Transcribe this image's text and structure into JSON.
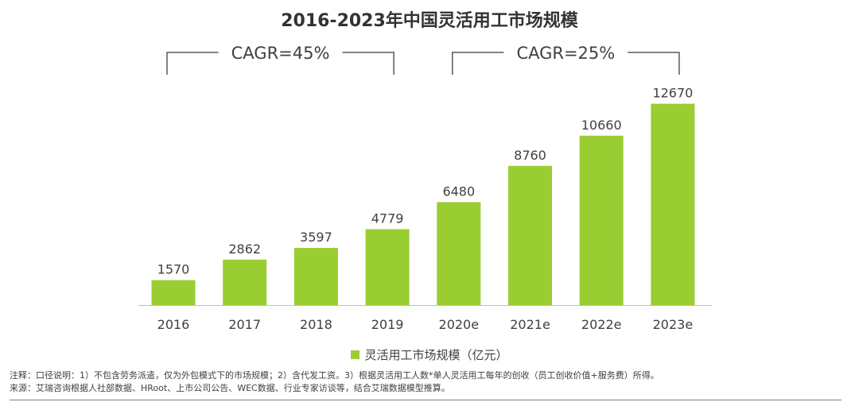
{
  "chart_data": {
    "type": "bar",
    "title": "2016-2023年中国灵活用工市场规模",
    "categories": [
      "2016",
      "2017",
      "2018",
      "2019",
      "2020e",
      "2021e",
      "2022e",
      "2023e"
    ],
    "series": [
      {
        "name": "灵活用工市场规模（亿元）",
        "values": [
          1570,
          2862,
          3597,
          4779,
          6480,
          8760,
          10660,
          12670
        ]
      }
    ],
    "ylim": [
      0,
      13000
    ],
    "grid": false,
    "legend_position": "bottom-center",
    "bar_color": "#9ACD32",
    "annotations": [
      {
        "text": "CAGR=45%",
        "from": "2016",
        "to": "2019"
      },
      {
        "text": "CAGR=25%",
        "from": "2020e",
        "to": "2023e"
      }
    ]
  },
  "notes": {
    "note": "注释：口径说明：1）不包含劳务派遣，仅为外包模式下的市场规模；2）含代发工资。3）根据灵活用工人数*单人灵活用工每年的创收（员工创收价值+服务费）所得。",
    "source": "来源：艾瑞咨询根据人社部数据、HRoot、上市公司公告、WEC数据、行业专家访谈等，结合艾瑞数据模型推算。"
  }
}
